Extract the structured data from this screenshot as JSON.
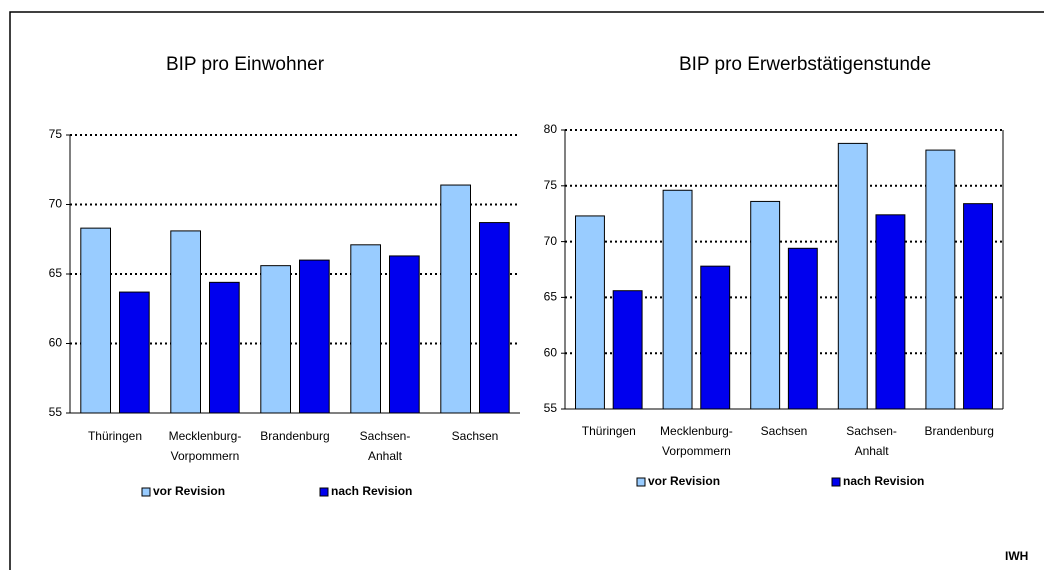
{
  "chart_data": [
    {
      "type": "bar",
      "title": "BIP pro Einwohner",
      "categories": [
        "Thüringen",
        "Mecklenburg-\nVorpommern",
        "Brandenburg",
        "Sachsen-\nAnhalt",
        "Sachsen"
      ],
      "series": [
        {
          "name": "vor Revision",
          "color": "#99ccff",
          "values": [
            68.3,
            68.1,
            65.6,
            67.1,
            71.4
          ]
        },
        {
          "name": "nach Revision",
          "color": "#0000ee",
          "values": [
            63.7,
            64.4,
            66.0,
            66.3,
            68.7
          ]
        }
      ],
      "ylim": [
        55,
        75
      ],
      "yticks": [
        55,
        60,
        65,
        70,
        75
      ],
      "grid": true
    },
    {
      "type": "bar",
      "title": "BIP pro Erwerbstätigenstunde",
      "categories": [
        "Thüringen",
        "Mecklenburg-\nVorpommern",
        "Sachsen",
        "Sachsen-\nAnhalt",
        "Brandenburg"
      ],
      "series": [
        {
          "name": "vor Revision",
          "color": "#99ccff",
          "values": [
            72.3,
            74.6,
            73.6,
            78.8,
            78.2
          ]
        },
        {
          "name": "nach Revision",
          "color": "#0000ee",
          "values": [
            65.6,
            67.8,
            69.4,
            72.4,
            73.4
          ]
        }
      ],
      "ylim": [
        55,
        80
      ],
      "yticks": [
        55,
        60,
        65,
        70,
        75,
        80
      ],
      "grid": true
    }
  ],
  "source": "IWH"
}
